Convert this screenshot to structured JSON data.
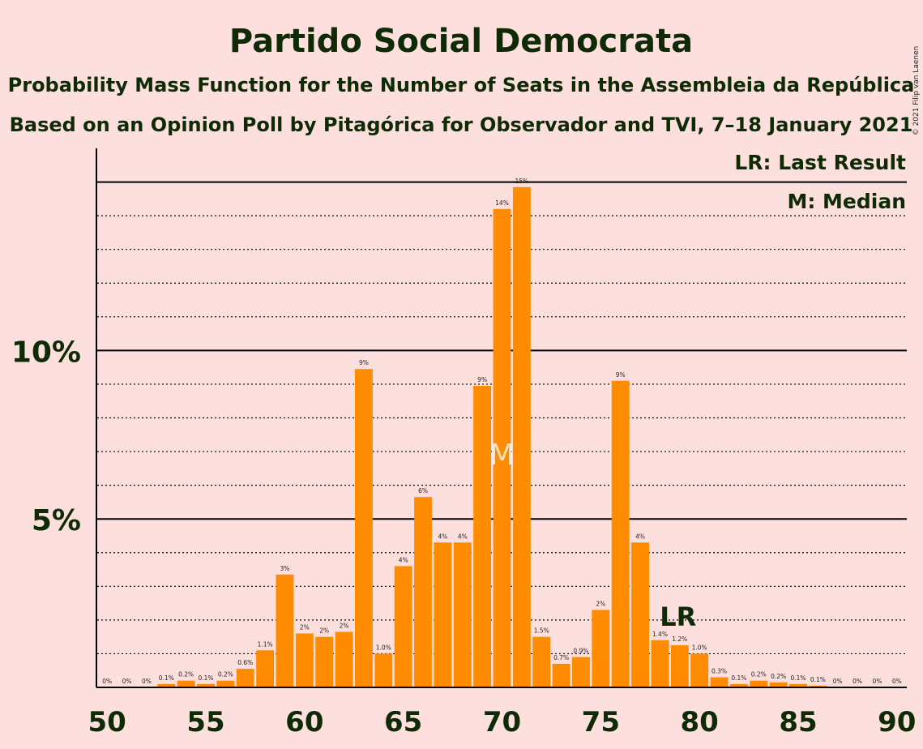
{
  "chart_data": {
    "type": "bar",
    "title": "Partido Social Democrata",
    "subtitle1": "Probability Mass Function for the Number of Seats in the Assembleia da República",
    "subtitle2": "Based on an Opinion Poll by Pitagórica for Observador and TVI, 7–18 January 2021",
    "legend_lr": "LR: Last Result",
    "legend_m": "M: Median",
    "copyright": "© 2021 Filip van Laenen",
    "marker_m": "M",
    "marker_lr": "LR",
    "median_seat": 70,
    "last_result_seat": 79,
    "ylim": [
      0,
      16
    ],
    "y_major_ticks": [
      {
        "value": 5,
        "label": "5%"
      },
      {
        "value": 10,
        "label": "10%"
      }
    ],
    "x_tick_labels": [
      {
        "value": 50,
        "label": "50"
      },
      {
        "value": 55,
        "label": "55"
      },
      {
        "value": 60,
        "label": "60"
      },
      {
        "value": 65,
        "label": "65"
      },
      {
        "value": 70,
        "label": "70"
      },
      {
        "value": 75,
        "label": "75"
      },
      {
        "value": 80,
        "label": "80"
      },
      {
        "value": 85,
        "label": "85"
      },
      {
        "value": 90,
        "label": "90"
      }
    ],
    "seats": [
      50,
      51,
      52,
      53,
      54,
      55,
      56,
      57,
      58,
      59,
      60,
      61,
      62,
      63,
      64,
      65,
      66,
      67,
      68,
      69,
      70,
      71,
      72,
      73,
      74,
      75,
      76,
      77,
      78,
      79,
      80,
      81,
      82,
      83,
      84,
      85,
      86,
      87,
      88,
      89,
      90
    ],
    "values": [
      0,
      0,
      0,
      0.1,
      0.2,
      0.1,
      0.2,
      0.55,
      1.1,
      3.35,
      1.6,
      1.5,
      1.65,
      9.45,
      1.0,
      3.6,
      5.65,
      4.3,
      4.3,
      8.95,
      14.2,
      14.85,
      1.5,
      0.7,
      0.9,
      2.3,
      9.1,
      4.3,
      1.4,
      1.25,
      1.0,
      0.3,
      0.1,
      0.2,
      0.15,
      0.1,
      0.05,
      0,
      0,
      0,
      0
    ],
    "data_labels": [
      "0%",
      "0%",
      "0%",
      "0.1%",
      "0.2%",
      "0.1%",
      "0.2%",
      "0.6%",
      "1.1%",
      "3%",
      "2%",
      "2%",
      "2%",
      "9%",
      "1.0%",
      "4%",
      "6%",
      "4%",
      "4%",
      "9%",
      "14%",
      "15%",
      "1.5%",
      "0.7%",
      "0.9%",
      "2%",
      "9%",
      "4%",
      "1.4%",
      "1.2%",
      "1.0%",
      "0.3%",
      "0.1%",
      "0.2%",
      "0.2%",
      "0.1%",
      "0.1%",
      "0%",
      "0%",
      "0%",
      "0%"
    ],
    "colors": {
      "background": "#fde0dd",
      "bar": "#ff8c00",
      "text": "#0e2b05"
    }
  }
}
